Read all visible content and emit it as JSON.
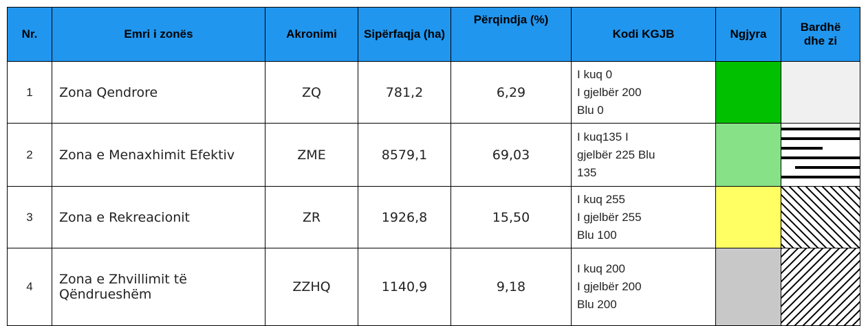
{
  "table": {
    "header": [
      "Nr.",
      "Emri i zonës",
      "Akronimi",
      "Sipërfaqja (ha)",
      "Përqindja (%)",
      "Kodi KGJB",
      "Ngjyra",
      "Bardhë dhe zi"
    ],
    "rows": [
      [
        "1",
        "Zona Qendrore",
        "ZQ",
        "781,2",
        "6,29",
        [
          "I kuq  0",
          "I gjelbër  200",
          "Blu 0"
        ]
      ],
      [
        "2",
        "Zona e Menaxhimit Efektiv",
        "ZME",
        "8579,1",
        "69,03",
        [
          "I kuq135 I",
          "gjelbër 225 Blu",
          "135"
        ]
      ],
      [
        "3",
        "Zona e Rekreacionit",
        "ZR",
        "1926,8",
        "15,50",
        [
          "I kuq 255",
          "I gjelbër 255",
          "Blu 100"
        ]
      ],
      [
        "4",
        "Zona e Zhvillimit të Qëndrueshëm",
        "ZZHQ",
        "1140,9",
        "9,18",
        [
          "I kuq 200",
          "I gjelbër 200",
          "Blu 200"
        ]
      ]
    ]
  }
}
